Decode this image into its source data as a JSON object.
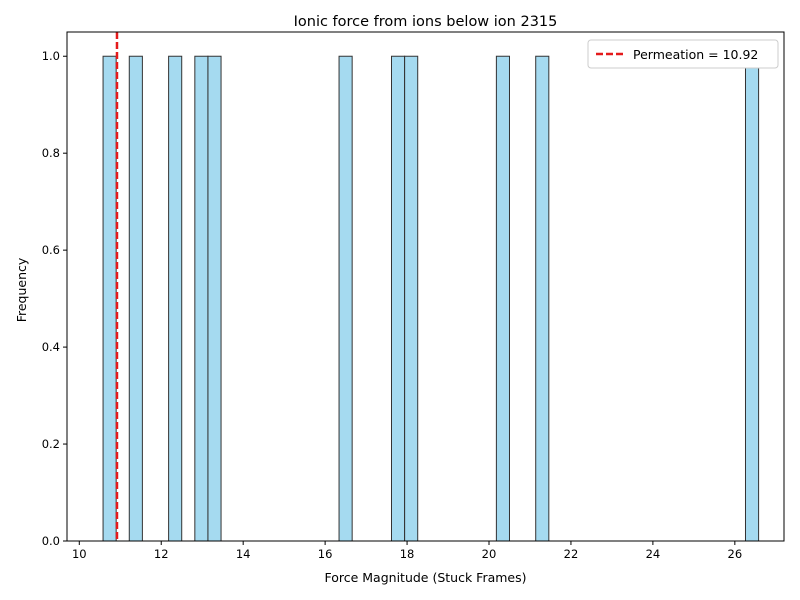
{
  "chart_data": {
    "type": "bar",
    "title": "Ionic force from ions below ion 2315",
    "xlabel": "Force Magnitude (Stuck Frames)",
    "ylabel": "Frequency",
    "xlim": [
      9.7,
      27.2
    ],
    "ylim": [
      0,
      1.05
    ],
    "xticks": [
      10,
      12,
      14,
      16,
      18,
      20,
      22,
      24,
      26
    ],
    "yticks": [
      "0.0",
      "0.2",
      "0.4",
      "0.6",
      "0.8",
      "1.0"
    ],
    "bar_color": "#87CEEB",
    "bar_edge_color": "#333333",
    "bars": [
      {
        "x0": 10.58,
        "x1": 10.9,
        "value": 1
      },
      {
        "x0": 11.22,
        "x1": 11.54,
        "value": 1
      },
      {
        "x0": 12.18,
        "x1": 12.5,
        "value": 1
      },
      {
        "x0": 12.82,
        "x1": 13.14,
        "value": 1
      },
      {
        "x0": 13.14,
        "x1": 13.46,
        "value": 1
      },
      {
        "x0": 16.34,
        "x1": 16.66,
        "value": 1
      },
      {
        "x0": 17.62,
        "x1": 17.94,
        "value": 1
      },
      {
        "x0": 17.94,
        "x1": 18.26,
        "value": 1
      },
      {
        "x0": 20.18,
        "x1": 20.5,
        "value": 1
      },
      {
        "x0": 21.14,
        "x1": 21.46,
        "value": 1
      },
      {
        "x0": 26.26,
        "x1": 26.58,
        "value": 1
      }
    ],
    "vline": {
      "x": 10.92,
      "label": "Permeation = 10.92",
      "color": "#e41a1c"
    },
    "legend_position": "top-right",
    "grid": false
  }
}
